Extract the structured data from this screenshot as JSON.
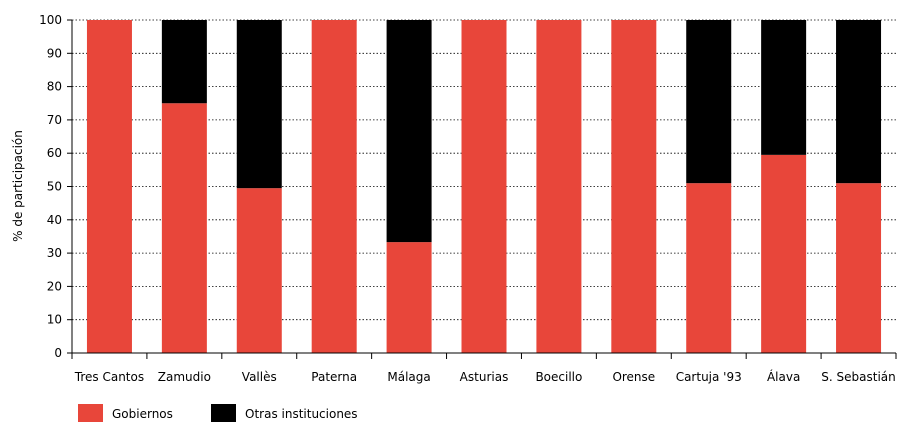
{
  "chart_data": {
    "type": "bar",
    "stacked": true,
    "ylabel": "% de participación",
    "xlabel": "",
    "ylim": [
      0,
      100
    ],
    "yticks": [
      0,
      10,
      20,
      30,
      40,
      50,
      60,
      70,
      80,
      90,
      100
    ],
    "grid": "horizontal dashed",
    "legend_position": "bottom-left",
    "categories": [
      "Tres Cantos",
      "Zamudio",
      "Vallès",
      "Paterna",
      "Málaga",
      "Asturias",
      "Boecillo",
      "Orense",
      "Cartuja '93",
      "Álava",
      "S. Sebastián"
    ],
    "series": [
      {
        "name": "Gobiernos",
        "color": "#e8463a",
        "values": [
          100,
          75,
          49.5,
          100,
          33.3,
          100,
          100,
          100,
          51,
          59.5,
          51
        ]
      },
      {
        "name": "Otras instituciones",
        "color": "#000000",
        "values": [
          0,
          25,
          50.5,
          0,
          66.7,
          0,
          0,
          0,
          49,
          40.5,
          49
        ]
      }
    ]
  }
}
